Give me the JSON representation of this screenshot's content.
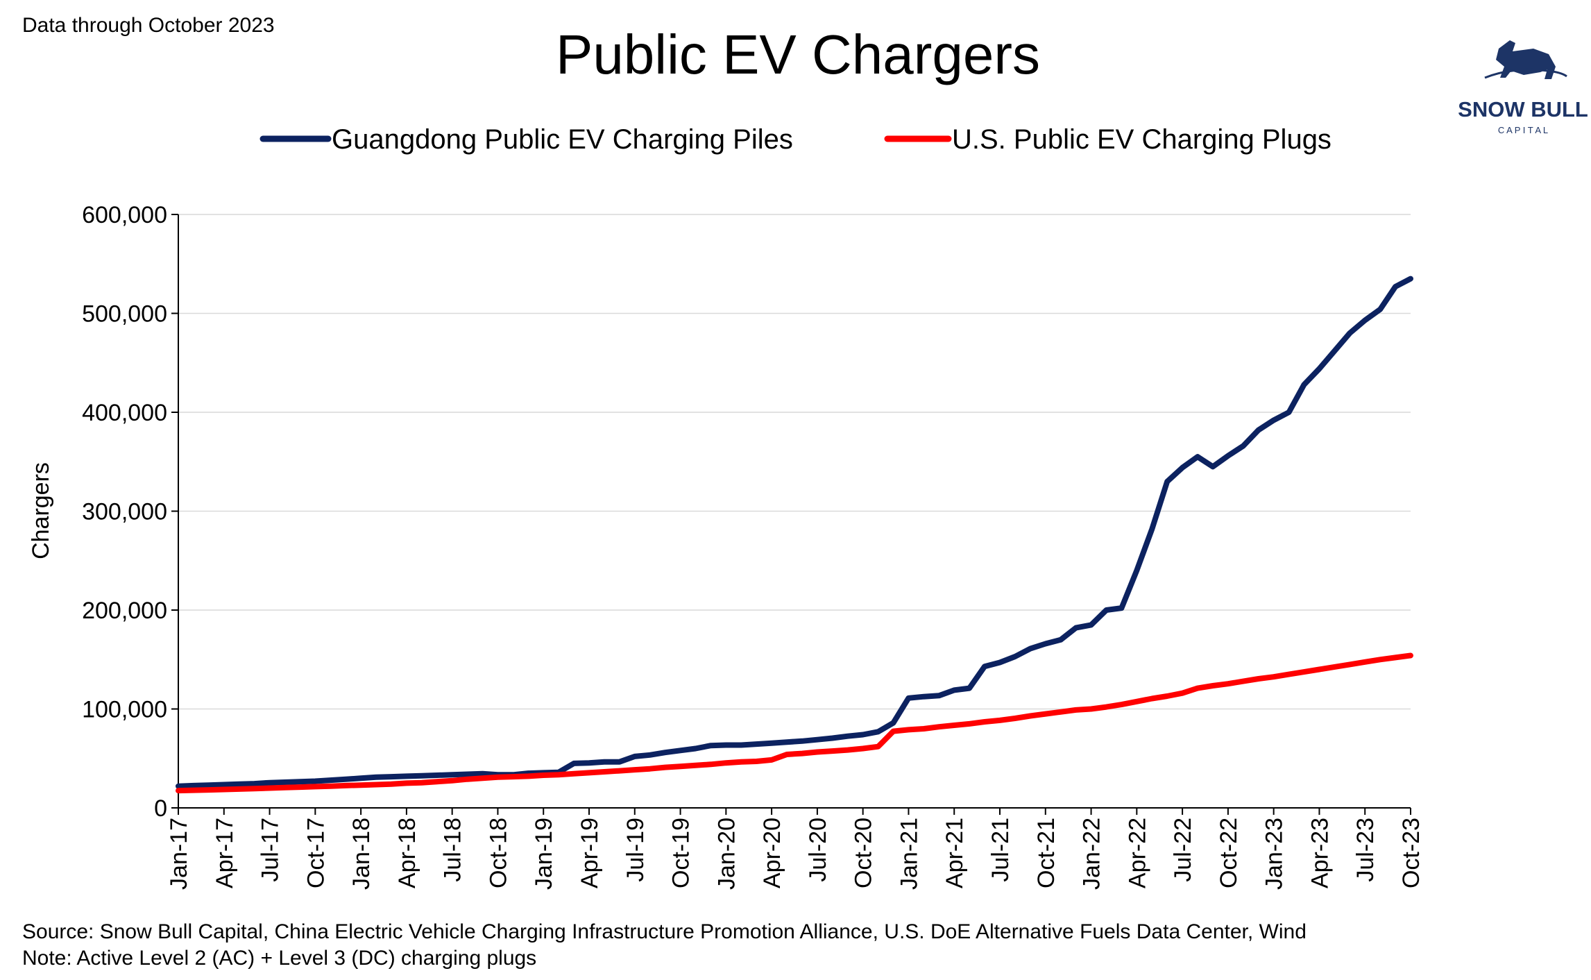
{
  "chart_data": {
    "type": "line",
    "title": "Public EV Chargers",
    "note_top": "Data through October 2023",
    "ylabel": "Chargers",
    "source": "Source: Snow Bull Capital, China Electric Vehicle Charging Infrastructure Promotion Alliance, U.S. DoE Alternative Fuels Data Center, Wind",
    "note": "Note: Active Level 2 (AC) + Level 3 (DC) charging plugs",
    "logo": {
      "name": "SNOW BULL",
      "sub": "C A P I T A L"
    },
    "categories": [
      "Jan-17",
      null,
      null,
      "Apr-17",
      null,
      null,
      "Jul-17",
      null,
      null,
      "Oct-17",
      null,
      null,
      "Jan-18",
      null,
      null,
      "Apr-18",
      null,
      null,
      "Jul-18",
      null,
      null,
      "Oct-18",
      null,
      null,
      "Jan-19",
      null,
      null,
      "Apr-19",
      null,
      null,
      "Jul-19",
      null,
      null,
      "Oct-19",
      null,
      null,
      "Jan-20",
      null,
      null,
      "Apr-20",
      null,
      null,
      "Jul-20",
      null,
      null,
      "Oct-20",
      null,
      null,
      "Jan-21",
      null,
      null,
      "Apr-21",
      null,
      null,
      "Jul-21",
      null,
      null,
      "Oct-21",
      null,
      null,
      "Jan-22",
      null,
      null,
      "Apr-22",
      null,
      null,
      "Jul-22",
      null,
      null,
      "Oct-22",
      null,
      null,
      "Jan-23",
      null,
      null,
      "Apr-23",
      null,
      null,
      "Jul-23",
      null,
      null,
      "Oct-23"
    ],
    "series": [
      {
        "name": "Guangdong Public EV Charging Piles",
        "color": "#0c2260",
        "values": [
          22000,
          22500,
          23000,
          23500,
          24000,
          24500,
          25500,
          26000,
          26500,
          27000,
          28000,
          29000,
          30000,
          31000,
          31500,
          32000,
          32500,
          33000,
          33500,
          34000,
          34500,
          33500,
          33500,
          35000,
          35500,
          36000,
          45000,
          45500,
          46500,
          46500,
          52000,
          53500,
          56000,
          58000,
          60000,
          63000,
          63500,
          63500,
          64500,
          65500,
          66500,
          67500,
          69000,
          70500,
          72500,
          74000,
          77000,
          86000,
          111000,
          112500,
          113500,
          119000,
          121000,
          143000,
          147000,
          153000,
          161000,
          166000,
          170000,
          182000,
          185000,
          200000,
          202000,
          240000,
          282000,
          330000,
          344000,
          355000,
          345000,
          356000,
          366000,
          382000,
          392000,
          400000,
          428000,
          444000,
          462000,
          480000,
          493000,
          504000,
          527000,
          535000
        ]
      },
      {
        "name": "U.S. Public EV Charging Plugs",
        "color": "#ff0000",
        "values": [
          17500,
          17800,
          18200,
          18600,
          19000,
          19500,
          20000,
          20500,
          21000,
          21500,
          22000,
          22500,
          23000,
          23500,
          24000,
          25000,
          25500,
          26500,
          27500,
          29000,
          30000,
          31000,
          31500,
          32000,
          33000,
          33500,
          34500,
          35500,
          36500,
          37500,
          38500,
          39500,
          41000,
          42000,
          43000,
          44000,
          45500,
          46500,
          47000,
          48500,
          54000,
          55000,
          56500,
          57500,
          58500,
          60000,
          62000,
          77500,
          79000,
          80000,
          82000,
          83500,
          85000,
          87000,
          88500,
          90500,
          93000,
          95000,
          97000,
          99000,
          100000,
          102000,
          104500,
          107500,
          110500,
          113000,
          116000,
          121000,
          123500,
          125500,
          128000,
          130500,
          132500,
          135000,
          137500,
          140000,
          142500,
          145000,
          147500,
          150000,
          152000,
          154000
        ]
      }
    ],
    "ylim": [
      0,
      600000
    ],
    "yticks": [
      0,
      {
        "value": 100000,
        "label": "100,000"
      },
      {
        "value": 200000,
        "label": "200,000"
      },
      {
        "value": 300000,
        "label": "300,000"
      },
      {
        "value": 400000,
        "label": "400,000"
      },
      {
        "value": 500000,
        "label": "500,000"
      },
      {
        "value": 600000,
        "label": "600,000"
      }
    ],
    "grid": true,
    "legend": "top"
  }
}
